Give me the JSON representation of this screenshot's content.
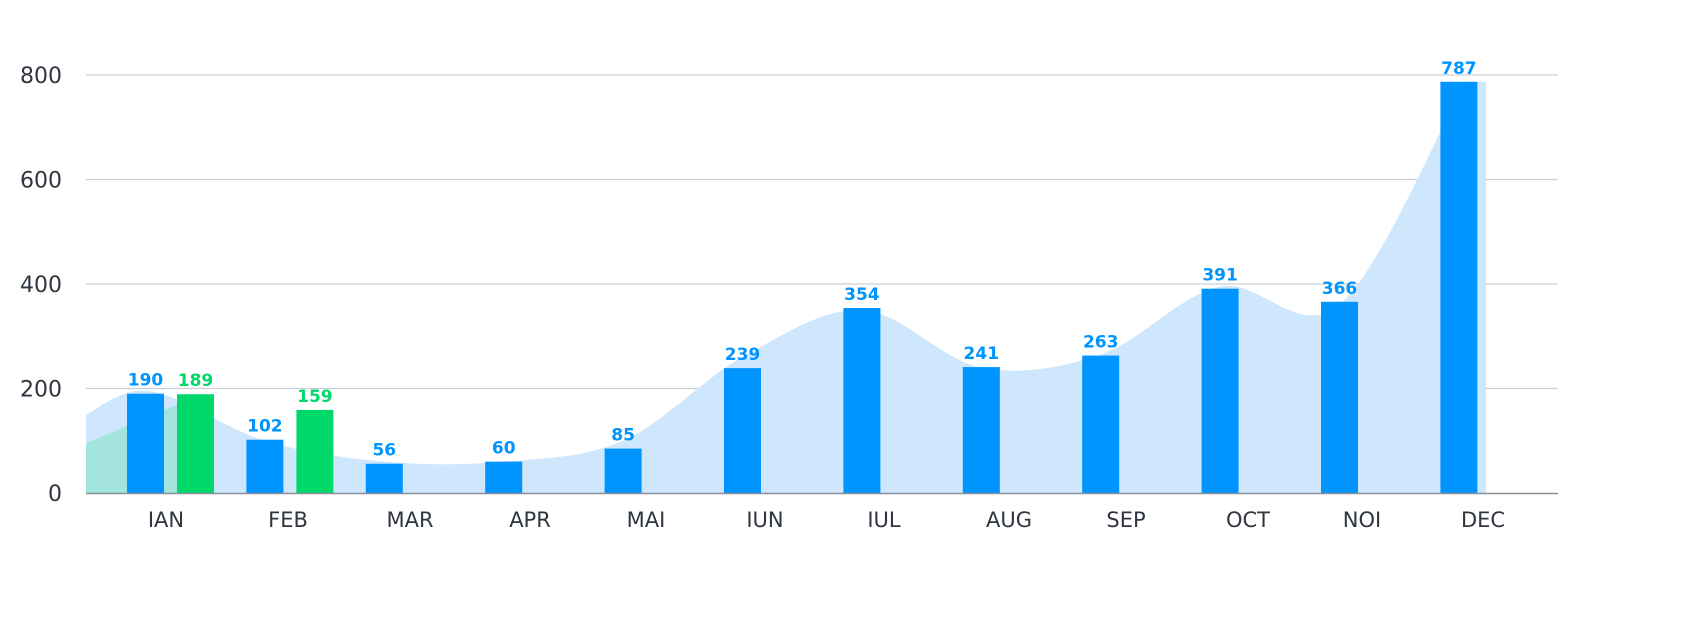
{
  "chart_data": {
    "type": "bar",
    "title": "",
    "xlabel": "",
    "ylabel": "",
    "ylim": [
      0,
      800
    ],
    "yticks": [
      "0",
      "200",
      "400",
      "600",
      "800"
    ],
    "grid": true,
    "categories": [
      "IAN",
      "FEB",
      "MAR",
      "APR",
      "MAI",
      "IUN",
      "IUL",
      "AUG",
      "SEP",
      "OCT",
      "NOI",
      "DEC"
    ],
    "series": [
      {
        "name": "blue",
        "color": "#0094ff",
        "values": [
          190,
          102,
          56,
          60,
          85,
          239,
          354,
          241,
          263,
          391,
          366,
          787
        ]
      },
      {
        "name": "green",
        "color": "#00d96a",
        "values": [
          189,
          159,
          null,
          null,
          null,
          null,
          null,
          null,
          null,
          null,
          null,
          null
        ]
      }
    ],
    "area_series": [
      {
        "name": "blue-trend",
        "color": "#cfe7fd",
        "values": [
          150,
          195,
          100,
          60,
          60,
          100,
          260,
          350,
          240,
          265,
          395,
          360,
          787
        ]
      },
      {
        "name": "green-trend",
        "color": "#a3e4df",
        "values": [
          95,
          180
        ]
      }
    ]
  }
}
